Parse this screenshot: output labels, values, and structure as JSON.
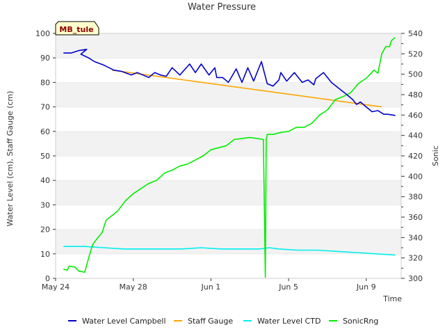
{
  "chart_data": {
    "type": "line",
    "title": "Water Pressure",
    "xlabel": "Time",
    "ylabel_left": "Water Level (cm), Staff Gauge (cm)",
    "ylabel_right": "Sonic",
    "site_label": "MB_tule",
    "x_ticks": [
      "May 24",
      "May 28",
      "Jun 1",
      "Jun 5",
      "Jun 9"
    ],
    "x_tick_days": [
      0,
      4,
      8,
      12,
      16
    ],
    "x_range_days": [
      0,
      17.8
    ],
    "y_left_ticks": [
      0,
      10,
      20,
      30,
      40,
      50,
      60,
      70,
      80,
      90,
      100
    ],
    "y_left_range": [
      0,
      100
    ],
    "y_right_ticks": [
      300,
      320,
      340,
      360,
      380,
      400,
      420,
      440,
      460,
      480,
      500,
      520,
      540
    ],
    "y_right_range": [
      300,
      540
    ],
    "grid": "horizontal bands",
    "legend_placement": "bottom",
    "series": [
      {
        "name": "Water Level Campbell",
        "axis": "left",
        "color": "#0000cc",
        "x": [
          0.4,
          0.8,
          1.2,
          1.6,
          1.3,
          1.7,
          2.0,
          2.5,
          3.0,
          3.4,
          3.9,
          4.2,
          4.5,
          4.8,
          5.1,
          5.4,
          5.7,
          6.0,
          6.4,
          6.9,
          7.2,
          7.5,
          7.9,
          8.2,
          8.3,
          8.6,
          8.9,
          9.3,
          9.6,
          9.9,
          10.2,
          10.6,
          10.9,
          11.2,
          11.5,
          11.6,
          11.9,
          12.3,
          12.7,
          13.0,
          13.3,
          13.4,
          13.8,
          14.2,
          14.6,
          15.0,
          15.3,
          15.5,
          15.7,
          16.0,
          16.3,
          16.6,
          16.9,
          17.1,
          17.5
        ],
        "y": [
          92,
          92,
          93,
          93.5,
          91.5,
          90,
          88.5,
          87,
          85,
          84.5,
          83,
          84,
          83,
          82,
          84,
          83,
          82.5,
          86,
          83,
          87.5,
          84,
          87.5,
          83,
          86,
          82,
          82,
          80,
          85.5,
          80,
          86,
          80.5,
          88.5,
          79.5,
          78.5,
          81,
          84,
          80.5,
          84,
          80,
          81,
          79,
          81.5,
          84,
          80,
          77.5,
          75,
          73,
          71,
          72,
          70,
          68,
          68.5,
          67,
          67,
          66.5
        ]
      },
      {
        "name": "Staff Gauge",
        "axis": "left",
        "color": "#ffa500",
        "x": [
          2.9,
          16.8
        ],
        "y": [
          85,
          70
        ]
      },
      {
        "name": "Water Level CTD",
        "axis": "left",
        "color": "#00eeee",
        "x": [
          0.4,
          1.5,
          2.5,
          3.5,
          4.5,
          5.5,
          6.5,
          7.5,
          8.5,
          9.5,
          10.5,
          11.0,
          11.5,
          12.5,
          13.5,
          14.5,
          15.5,
          16.5,
          17.5
        ],
        "y": [
          13,
          13,
          12.5,
          12,
          12,
          12,
          12,
          12.5,
          12,
          12,
          12,
          12.5,
          12,
          11.5,
          11.5,
          11,
          10.5,
          10,
          9.5
        ]
      },
      {
        "name": "SonicRng",
        "axis": "right",
        "color": "#00ee00",
        "x": [
          0.4,
          0.6,
          0.7,
          1.0,
          1.2,
          1.5,
          1.7,
          1.9,
          2.1,
          2.4,
          2.6,
          2.8,
          3.2,
          3.6,
          4.0,
          4.4,
          4.8,
          5.2,
          5.6,
          6.0,
          6.4,
          6.8,
          7.2,
          7.6,
          8.0,
          8.4,
          8.8,
          9.2,
          9.6,
          10.0,
          10.4,
          10.7,
          10.8,
          10.85,
          10.9,
          11.2,
          11.6,
          12.0,
          12.4,
          12.8,
          13.2,
          13.6,
          14.0,
          14.4,
          14.8,
          15.2,
          15.6,
          16.0,
          16.4,
          16.6,
          16.8,
          17.0,
          17.2,
          17.3,
          17.5
        ],
        "y": [
          309,
          308,
          312,
          311,
          307,
          306,
          320,
          333,
          338,
          345,
          357,
          360,
          366,
          376,
          383,
          388,
          393,
          396,
          403,
          406,
          410,
          412,
          416,
          420,
          426,
          428,
          430,
          436,
          437,
          438,
          437,
          436,
          301,
          436,
          441,
          441,
          443,
          444,
          448,
          448,
          452,
          460,
          465,
          475,
          478,
          482,
          491,
          496,
          504,
          501,
          520,
          527,
          527,
          533,
          536
        ]
      }
    ]
  }
}
